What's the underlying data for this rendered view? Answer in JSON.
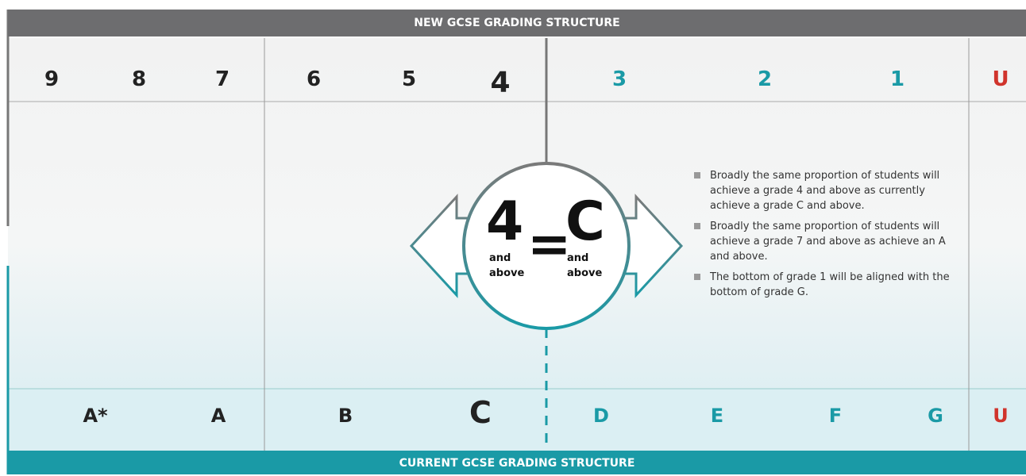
{
  "header": {
    "title": "NEW GCSE GRADING STRUCTURE"
  },
  "new_grades": [
    {
      "label": "9",
      "color": "#222222"
    },
    {
      "label": "8",
      "color": "#222222"
    },
    {
      "label": "7",
      "color": "#222222"
    },
    {
      "label": "6",
      "color": "#222222"
    },
    {
      "label": "5",
      "color": "#222222"
    },
    {
      "label": "4",
      "color": "#222222"
    },
    {
      "label": "3",
      "color": "#1a9aa6"
    },
    {
      "label": "2",
      "color": "#1a9aa6"
    },
    {
      "label": "1",
      "color": "#1a9aa6"
    },
    {
      "label": "U",
      "color": "#d0342c"
    }
  ],
  "current_grades": [
    {
      "label": "A*",
      "color": "#222222"
    },
    {
      "label": "A",
      "color": "#222222"
    },
    {
      "label": "B",
      "color": "#222222"
    },
    {
      "label": "C",
      "color": "#222222"
    },
    {
      "label": "D",
      "color": "#1a9aa6"
    },
    {
      "label": "E",
      "color": "#1a9aa6"
    },
    {
      "label": "F",
      "color": "#1a9aa6"
    },
    {
      "label": "G",
      "color": "#1a9aa6"
    },
    {
      "label": "U",
      "color": "#d0342c"
    }
  ],
  "equation": {
    "left": {
      "grade": "4",
      "note": [
        "and",
        "above"
      ]
    },
    "sign": "=",
    "right": {
      "grade": "C",
      "note": [
        "and",
        "above"
      ]
    }
  },
  "bullets": [
    "Broadly the same proportion of students will achieve a grade 4 and above as currently achieve a grade C and above.",
    "Broadly the same proportion of students will achieve a grade 7 and above as achieve an A and above.",
    "The bottom of grade 1 will be aligned with the bottom of grade G."
  ],
  "footer": {
    "title": "CURRENT GCSE GRADING STRUCTURE"
  }
}
